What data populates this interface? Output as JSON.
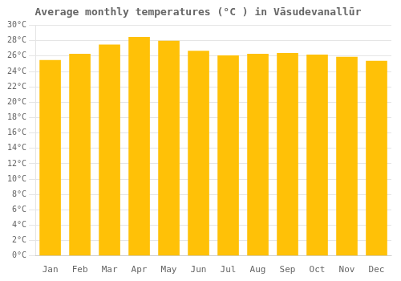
{
  "chart_data": {
    "type": "bar",
    "title": "Average monthly temperatures (°C ) in Vāsudevanallūr",
    "categories": [
      "Jan",
      "Feb",
      "Mar",
      "Apr",
      "May",
      "Jun",
      "Jul",
      "Aug",
      "Sep",
      "Oct",
      "Nov",
      "Dec"
    ],
    "values": [
      25.5,
      26.3,
      27.5,
      28.5,
      28.0,
      26.7,
      26.1,
      26.3,
      26.4,
      26.2,
      25.9,
      25.4
    ],
    "color": "#FFC107",
    "ylim": [
      0,
      30
    ],
    "yticks": [
      {
        "value": 0,
        "label": "0°C"
      },
      {
        "value": 2,
        "label": "2°C"
      },
      {
        "value": 4,
        "label": "4°C"
      },
      {
        "value": 6,
        "label": "6°C"
      },
      {
        "value": 8,
        "label": "8°C"
      },
      {
        "value": 10,
        "label": "10°C"
      },
      {
        "value": 12,
        "label": "12°C"
      },
      {
        "value": 14,
        "label": "14°C"
      },
      {
        "value": 16,
        "label": "16°C"
      },
      {
        "value": 18,
        "label": "18°C"
      },
      {
        "value": 20,
        "label": "20°C"
      },
      {
        "value": 22,
        "label": "22°C"
      },
      {
        "value": 24,
        "label": "24°C"
      },
      {
        "value": 26,
        "label": "26°C"
      },
      {
        "value": 28,
        "label": "28°C"
      },
      {
        "value": 30,
        "label": "30°C"
      }
    ],
    "grid": true
  }
}
